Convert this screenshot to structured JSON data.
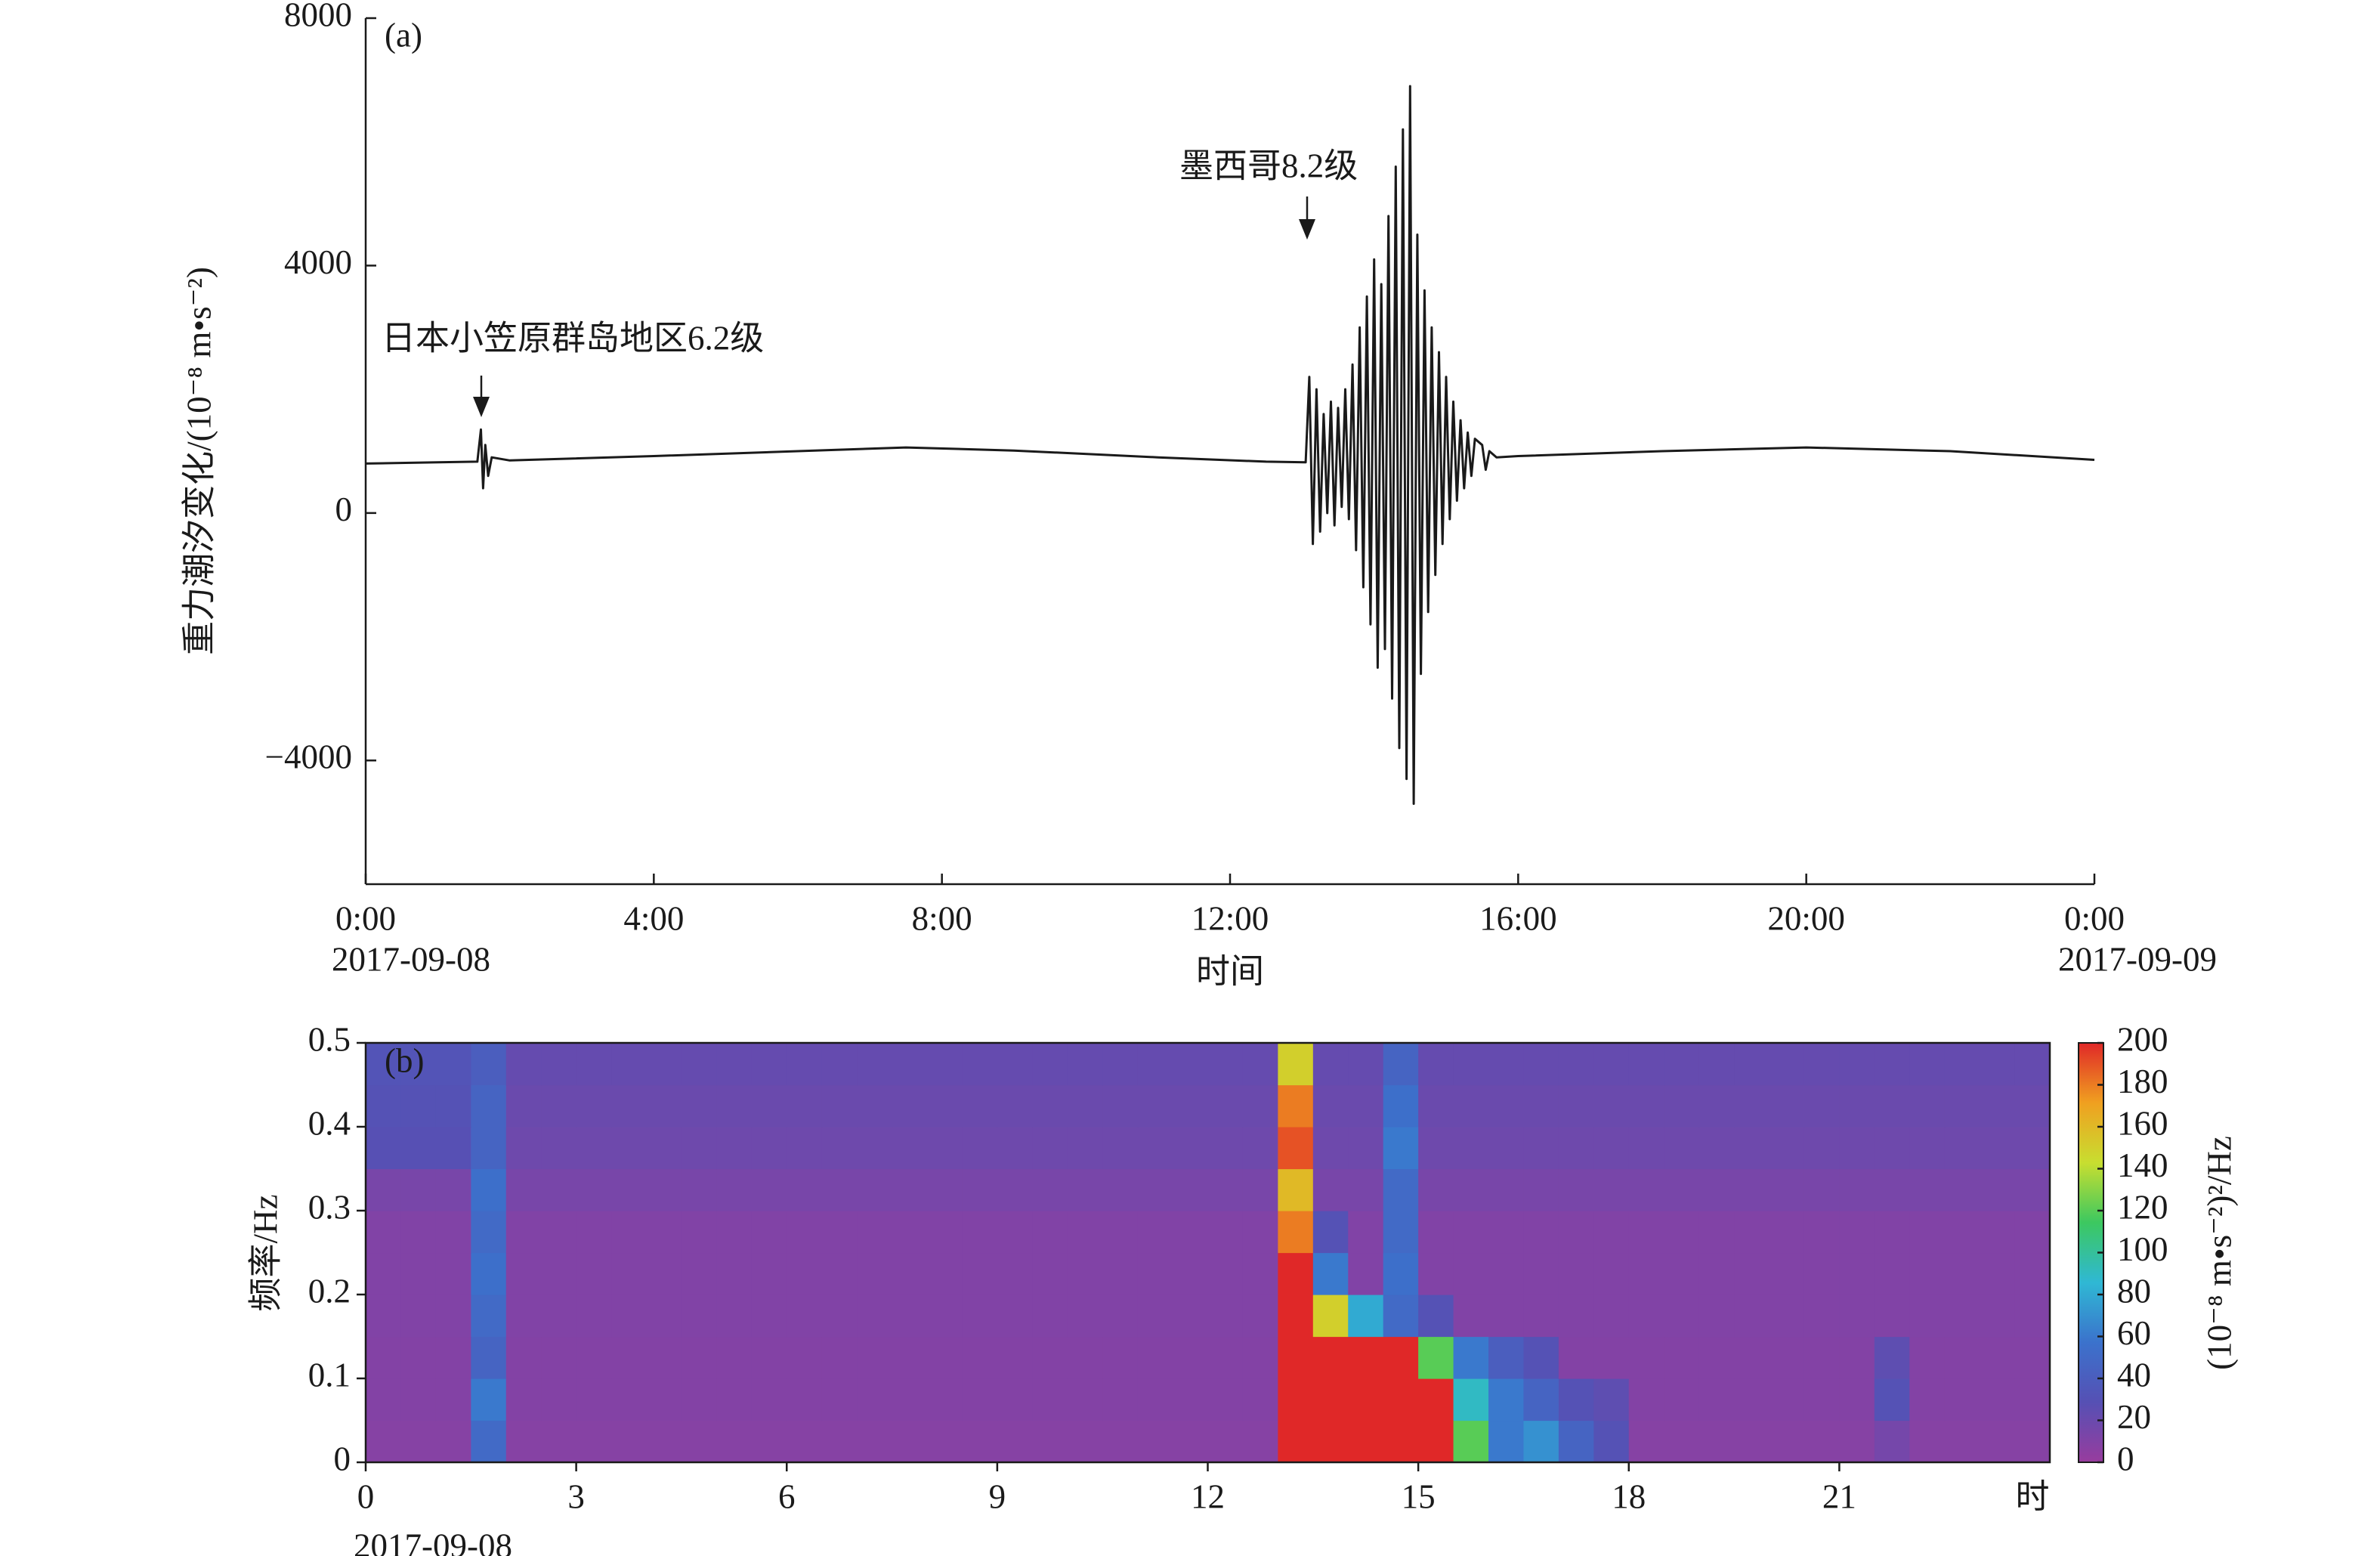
{
  "chart_data": [
    {
      "type": "line",
      "panel_label": "(a)",
      "ylabel": "重力潮汐变化/(10⁻⁸ m•s⁻²)",
      "xlabel": "时间",
      "xlim": [
        0,
        24
      ],
      "ylim": [
        -6000,
        8000
      ],
      "xticks": [
        {
          "value": 0,
          "label": "0:00"
        },
        {
          "value": 4,
          "label": "4:00"
        },
        {
          "value": 8,
          "label": "8:00"
        },
        {
          "value": 12,
          "label": "12:00"
        },
        {
          "value": 16,
          "label": "16:00"
        },
        {
          "value": 20,
          "label": "20:00"
        },
        {
          "value": 24,
          "label": "0:00"
        }
      ],
      "yticks": [
        8000,
        4000,
        0,
        {
          "value": -4000,
          "label": "−4000"
        }
      ],
      "date_labels": [
        "2017-09-08",
        "2017-09-09"
      ],
      "annotations": [
        "日本小笠原群岛地区6.2级",
        "墨西哥8.2级"
      ],
      "series": [
        {
          "color": "#1a1a1a",
          "x": [
            0,
            1,
            1.55,
            1.6,
            1.63,
            1.66,
            1.7,
            1.75,
            2,
            4,
            6,
            7.5,
            9,
            11,
            12.5,
            13.05,
            13.1,
            13.15,
            13.2,
            13.25,
            13.3,
            13.35,
            13.4,
            13.45,
            13.5,
            13.55,
            13.6,
            13.65,
            13.7,
            13.75,
            13.8,
            13.85,
            13.9,
            13.95,
            14.0,
            14.05,
            14.1,
            14.15,
            14.2,
            14.25,
            14.3,
            14.35,
            14.4,
            14.45,
            14.5,
            14.55,
            14.6,
            14.65,
            14.7,
            14.75,
            14.8,
            14.85,
            14.9,
            14.95,
            15.0,
            15.05,
            15.1,
            15.15,
            15.2,
            15.25,
            15.3,
            15.35,
            15.4,
            15.5,
            15.55,
            15.6,
            15.7,
            16,
            18,
            20,
            22,
            24
          ],
          "values": [
            800,
            820,
            830,
            1350,
            400,
            1100,
            600,
            900,
            850,
            920,
            1000,
            1060,
            1010,
            900,
            830,
            820,
            2200,
            -500,
            2000,
            -300,
            1600,
            0,
            1800,
            -200,
            1700,
            100,
            2000,
            -100,
            2400,
            -600,
            3000,
            -1200,
            3500,
            -1800,
            4100,
            -2500,
            3700,
            -2200,
            4800,
            -3000,
            5600,
            -3800,
            6200,
            -4300,
            6900,
            -4700,
            4500,
            -2600,
            3600,
            -1600,
            3000,
            -1000,
            2600,
            -500,
            2200,
            -100,
            1800,
            200,
            1500,
            400,
            1300,
            600,
            1200,
            1100,
            700,
            1000,
            900,
            920,
            1000,
            1060,
            1000,
            860
          ]
        }
      ]
    },
    {
      "type": "heatmap",
      "panel_label": "(b)",
      "ylabel": "频率/Hz",
      "xlabel": "时",
      "date_label": "2017-09-08",
      "xlim": [
        0,
        24
      ],
      "ylim": [
        0,
        0.5
      ],
      "xticks": [
        0,
        3,
        6,
        9,
        12,
        15,
        18,
        21
      ],
      "yticks": [
        0,
        0.1,
        0.2,
        0.3,
        0.4,
        0.5
      ],
      "x_edges": [
        0,
        0.5,
        1,
        1.5,
        2,
        2.5,
        3,
        3.5,
        4,
        4.5,
        5,
        5.5,
        6,
        6.5,
        7,
        7.5,
        8,
        8.5,
        9,
        9.5,
        10,
        10.5,
        11,
        11.5,
        12,
        12.5,
        13,
        13.5,
        14,
        14.5,
        15,
        15.5,
        16,
        16.5,
        17,
        17.5,
        18,
        18.5,
        19,
        19.5,
        20,
        20.5,
        21,
        21.5,
        22,
        22.5,
        23,
        23.5,
        24
      ],
      "y_edges": [
        0,
        0.05,
        0.1,
        0.15,
        0.2,
        0.25,
        0.3,
        0.35,
        0.4,
        0.45,
        0.5
      ],
      "z": [
        [
          8,
          8,
          8,
          50,
          8,
          8,
          8,
          8,
          8,
          8,
          8,
          8,
          8,
          8,
          8,
          8,
          8,
          8,
          8,
          8,
          8,
          8,
          8,
          8,
          8,
          8,
          200,
          200,
          200,
          200,
          200,
          120,
          60,
          70,
          45,
          30,
          8,
          8,
          8,
          8,
          8,
          8,
          8,
          15,
          8,
          8,
          8,
          8
        ],
        [
          9,
          9,
          9,
          60,
          9,
          9,
          9,
          9,
          9,
          9,
          9,
          9,
          9,
          9,
          9,
          9,
          9,
          9,
          9,
          9,
          9,
          9,
          9,
          9,
          9,
          9,
          200,
          200,
          200,
          200,
          200,
          90,
          60,
          45,
          30,
          25,
          9,
          9,
          9,
          9,
          9,
          9,
          9,
          30,
          9,
          9,
          9,
          9
        ],
        [
          9,
          9,
          9,
          45,
          9,
          9,
          9,
          9,
          9,
          9,
          9,
          9,
          9,
          9,
          9,
          9,
          9,
          9,
          9,
          9,
          9,
          9,
          9,
          9,
          9,
          9,
          200,
          200,
          200,
          200,
          120,
          60,
          40,
          30,
          9,
          9,
          9,
          9,
          9,
          9,
          9,
          9,
          9,
          25,
          9,
          9,
          9,
          9
        ],
        [
          10,
          10,
          10,
          50,
          10,
          10,
          10,
          10,
          10,
          10,
          10,
          10,
          10,
          10,
          10,
          10,
          10,
          10,
          10,
          10,
          10,
          10,
          10,
          10,
          10,
          10,
          200,
          150,
          80,
          50,
          30,
          10,
          10,
          10,
          10,
          10,
          10,
          10,
          10,
          10,
          10,
          10,
          10,
          10,
          10,
          10,
          10,
          10
        ],
        [
          10,
          10,
          10,
          55,
          10,
          10,
          10,
          10,
          10,
          10,
          10,
          10,
          10,
          10,
          10,
          10,
          10,
          10,
          10,
          10,
          10,
          10,
          10,
          10,
          10,
          10,
          200,
          60,
          10,
          55,
          10,
          10,
          10,
          10,
          10,
          10,
          10,
          10,
          10,
          10,
          10,
          10,
          10,
          10,
          10,
          10,
          10,
          10
        ],
        [
          10,
          10,
          10,
          50,
          10,
          10,
          10,
          10,
          10,
          10,
          10,
          10,
          10,
          10,
          10,
          10,
          10,
          10,
          10,
          10,
          10,
          10,
          10,
          10,
          10,
          10,
          180,
          30,
          10,
          50,
          10,
          10,
          10,
          10,
          10,
          10,
          10,
          10,
          10,
          10,
          10,
          10,
          10,
          10,
          10,
          10,
          10,
          10
        ],
        [
          14,
          14,
          14,
          55,
          14,
          14,
          14,
          14,
          14,
          14,
          14,
          14,
          14,
          14,
          14,
          14,
          14,
          14,
          14,
          14,
          14,
          14,
          14,
          14,
          14,
          14,
          160,
          14,
          14,
          50,
          14,
          14,
          14,
          14,
          14,
          14,
          14,
          14,
          14,
          14,
          14,
          14,
          14,
          14,
          14,
          14,
          14,
          14
        ],
        [
          28,
          28,
          28,
          45,
          18,
          18,
          18,
          18,
          18,
          18,
          18,
          18,
          18,
          18,
          18,
          18,
          18,
          18,
          18,
          18,
          18,
          18,
          18,
          18,
          18,
          18,
          190,
          18,
          18,
          60,
          18,
          18,
          18,
          18,
          18,
          18,
          18,
          18,
          18,
          18,
          18,
          18,
          18,
          18,
          18,
          18,
          18,
          18
        ],
        [
          30,
          30,
          30,
          45,
          20,
          20,
          20,
          20,
          20,
          20,
          20,
          20,
          20,
          20,
          20,
          20,
          20,
          20,
          20,
          20,
          20,
          20,
          20,
          20,
          20,
          20,
          180,
          20,
          20,
          55,
          20,
          20,
          20,
          20,
          20,
          20,
          20,
          20,
          20,
          20,
          20,
          20,
          20,
          20,
          20,
          20,
          20,
          20
        ],
        [
          32,
          32,
          32,
          40,
          22,
          22,
          22,
          22,
          22,
          22,
          22,
          22,
          22,
          22,
          22,
          22,
          22,
          22,
          22,
          22,
          22,
          22,
          22,
          22,
          22,
          22,
          150,
          22,
          22,
          45,
          22,
          22,
          22,
          22,
          22,
          22,
          22,
          22,
          22,
          22,
          22,
          22,
          22,
          22,
          22,
          22,
          22,
          22
        ]
      ],
      "colors": [
        "#983c9e",
        "#5650b4",
        "#3b72cc",
        "#2fb8d4",
        "#3cc860",
        "#c8de30",
        "#f0a020",
        "#e02828"
      ],
      "clim": [
        0,
        200
      ],
      "cticks": [
        0,
        20,
        40,
        60,
        80,
        100,
        120,
        140,
        160,
        180,
        200
      ],
      "colorbar_label": "(10⁻⁸ m•s⁻²)²/Hz"
    }
  ]
}
